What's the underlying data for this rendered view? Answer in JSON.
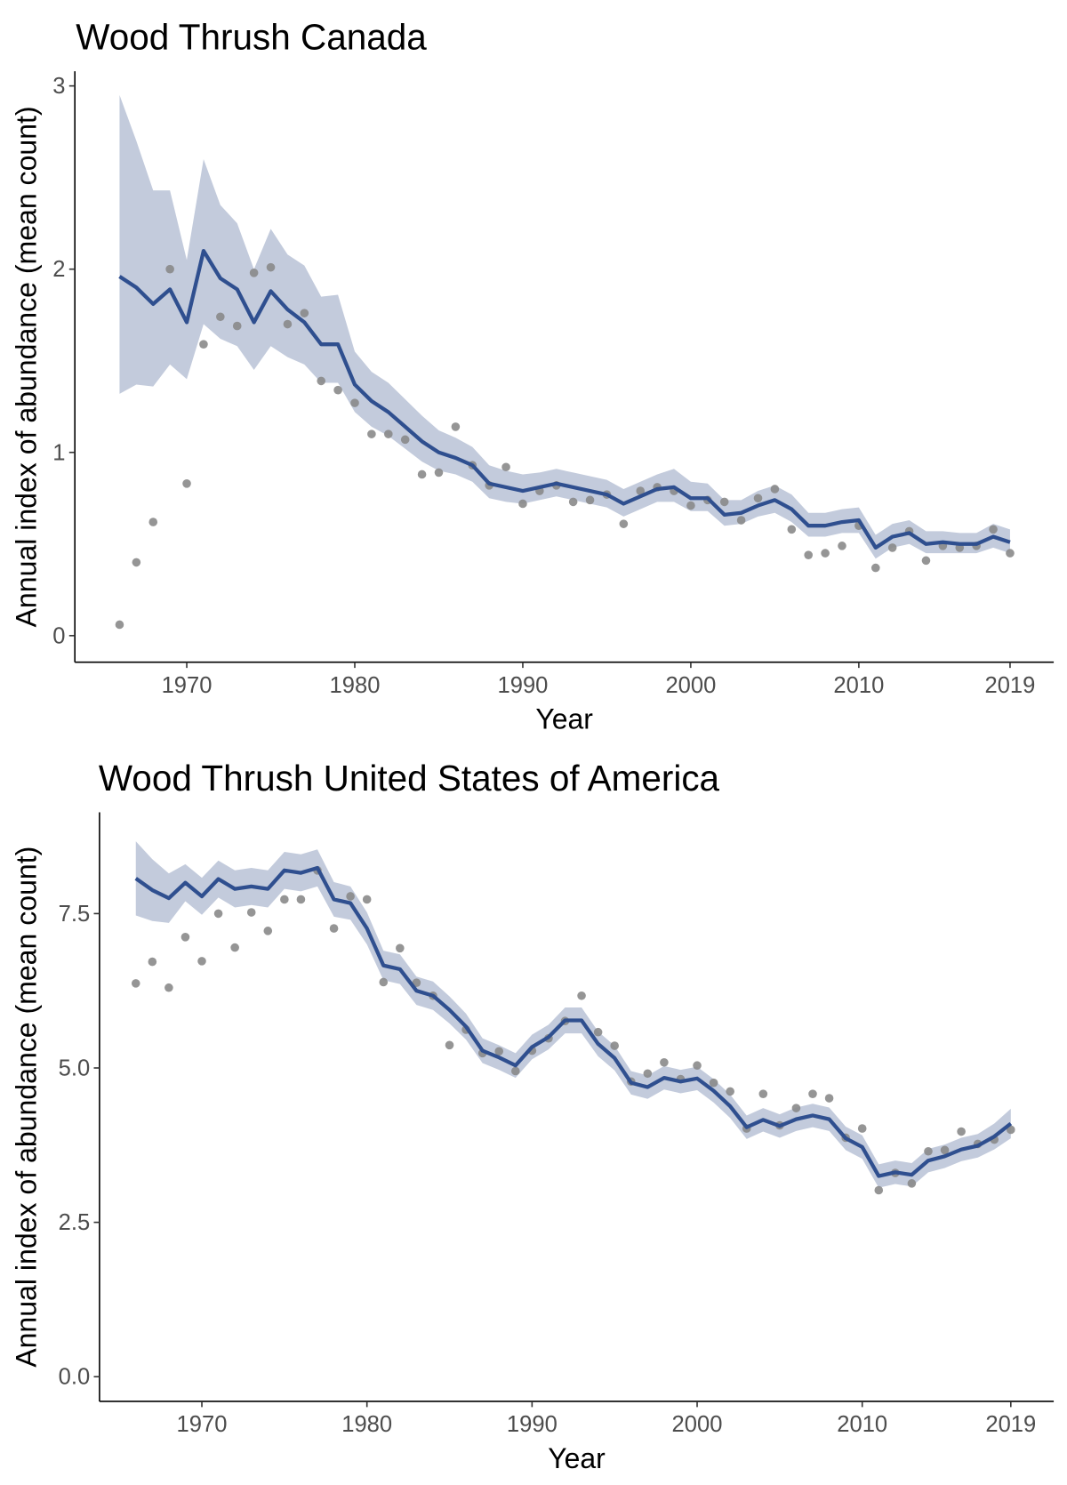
{
  "chart_data": [
    {
      "type": "line",
      "title": "Wood Thrush Canada",
      "xlabel": "Year",
      "ylabel": "Annual index of abundance (mean count)",
      "x": [
        1966,
        1967,
        1968,
        1969,
        1970,
        1971,
        1972,
        1973,
        1974,
        1975,
        1976,
        1977,
        1978,
        1979,
        1980,
        1981,
        1982,
        1983,
        1984,
        1985,
        1986,
        1987,
        1988,
        1989,
        1990,
        1991,
        1992,
        1993,
        1994,
        1995,
        1996,
        1997,
        1998,
        1999,
        2000,
        2001,
        2002,
        2003,
        2004,
        2005,
        2006,
        2007,
        2008,
        2009,
        2010,
        2011,
        2012,
        2013,
        2014,
        2015,
        2016,
        2017,
        2018,
        2019
      ],
      "values": [
        1.96,
        1.9,
        1.81,
        1.89,
        1.71,
        2.1,
        1.95,
        1.89,
        1.71,
        1.88,
        1.78,
        1.71,
        1.59,
        1.59,
        1.37,
        1.28,
        1.22,
        1.14,
        1.06,
        1.0,
        0.97,
        0.93,
        0.83,
        0.81,
        0.79,
        0.81,
        0.83,
        0.81,
        0.79,
        0.77,
        0.72,
        0.76,
        0.8,
        0.81,
        0.75,
        0.75,
        0.66,
        0.67,
        0.71,
        0.74,
        0.69,
        0.6,
        0.6,
        0.62,
        0.63,
        0.48,
        0.54,
        0.56,
        0.5,
        0.51,
        0.5,
        0.5,
        0.54,
        0.51
      ],
      "lower": [
        1.32,
        1.37,
        1.36,
        1.48,
        1.4,
        1.7,
        1.62,
        1.58,
        1.45,
        1.58,
        1.52,
        1.48,
        1.38,
        1.38,
        1.22,
        1.14,
        1.09,
        1.02,
        0.95,
        0.9,
        0.88,
        0.84,
        0.75,
        0.73,
        0.72,
        0.74,
        0.76,
        0.74,
        0.72,
        0.7,
        0.65,
        0.69,
        0.73,
        0.73,
        0.68,
        0.68,
        0.6,
        0.61,
        0.65,
        0.67,
        0.62,
        0.54,
        0.54,
        0.56,
        0.56,
        0.42,
        0.48,
        0.5,
        0.45,
        0.45,
        0.45,
        0.45,
        0.48,
        0.45
      ],
      "upper": [
        2.95,
        2.7,
        2.43,
        2.43,
        2.05,
        2.6,
        2.35,
        2.25,
        2.0,
        2.22,
        2.08,
        2.02,
        1.85,
        1.86,
        1.55,
        1.44,
        1.38,
        1.29,
        1.2,
        1.12,
        1.08,
        1.03,
        0.93,
        0.9,
        0.88,
        0.89,
        0.91,
        0.89,
        0.87,
        0.85,
        0.8,
        0.84,
        0.88,
        0.91,
        0.84,
        0.83,
        0.74,
        0.74,
        0.79,
        0.82,
        0.77,
        0.67,
        0.67,
        0.69,
        0.7,
        0.55,
        0.61,
        0.63,
        0.57,
        0.57,
        0.56,
        0.56,
        0.61,
        0.58
      ],
      "points": [
        0.06,
        0.4,
        0.62,
        2.0,
        0.83,
        1.59,
        1.74,
        1.69,
        1.98,
        2.01,
        1.7,
        1.76,
        1.39,
        1.34,
        1.27,
        1.1,
        1.1,
        1.07,
        0.88,
        0.89,
        1.14,
        0.93,
        0.82,
        0.92,
        0.72,
        0.79,
        0.82,
        0.73,
        0.74,
        0.77,
        0.61,
        0.79,
        0.81,
        0.79,
        0.71,
        0.74,
        0.73,
        0.63,
        0.75,
        0.8,
        0.58,
        0.44,
        0.45,
        0.49,
        0.6,
        0.37,
        0.48,
        0.57,
        0.41,
        0.49,
        0.48,
        0.49,
        0.58,
        0.45
      ],
      "line_color": "#2f4f8f",
      "band_color": "#c3cbdc",
      "point_color": "#8a8a8a",
      "xlim": [
        1963.34,
        2021.6
      ],
      "xticks": [
        1970,
        1980,
        1990,
        2000,
        2010,
        2019
      ],
      "ylim": [
        -0.145,
        3.08
      ],
      "yticks": [
        0,
        1,
        2,
        3
      ]
    },
    {
      "type": "line",
      "title": "Wood Thrush United States of America",
      "xlabel": "Year",
      "ylabel": "Annual index of abundance (mean count)",
      "x": [
        1966,
        1967,
        1968,
        1969,
        1970,
        1971,
        1972,
        1973,
        1974,
        1975,
        1976,
        1977,
        1978,
        1979,
        1980,
        1981,
        1982,
        1983,
        1984,
        1985,
        1986,
        1987,
        1988,
        1989,
        1990,
        1991,
        1992,
        1993,
        1994,
        1995,
        1996,
        1997,
        1998,
        1999,
        2000,
        2001,
        2002,
        2003,
        2004,
        2005,
        2006,
        2007,
        2008,
        2009,
        2010,
        2011,
        2012,
        2013,
        2014,
        2015,
        2016,
        2017,
        2018,
        2019
      ],
      "values": [
        8.07,
        7.88,
        7.75,
        8.0,
        7.78,
        8.06,
        7.9,
        7.94,
        7.9,
        8.2,
        8.16,
        8.24,
        7.73,
        7.67,
        7.26,
        6.66,
        6.6,
        6.25,
        6.17,
        5.94,
        5.67,
        5.28,
        5.17,
        5.04,
        5.34,
        5.5,
        5.77,
        5.77,
        5.39,
        5.16,
        4.76,
        4.69,
        4.84,
        4.78,
        4.83,
        4.63,
        4.38,
        4.04,
        4.16,
        4.06,
        4.17,
        4.23,
        4.17,
        3.86,
        3.72,
        3.25,
        3.31,
        3.27,
        3.5,
        3.57,
        3.68,
        3.74,
        3.89,
        4.1
      ],
      "lower": [
        7.47,
        7.38,
        7.35,
        7.7,
        7.48,
        7.76,
        7.6,
        7.64,
        7.6,
        7.9,
        7.86,
        7.94,
        7.45,
        7.4,
        7.0,
        6.42,
        6.36,
        6.02,
        5.94,
        5.72,
        5.46,
        5.08,
        4.97,
        4.84,
        5.14,
        5.3,
        5.56,
        5.56,
        5.19,
        4.96,
        4.57,
        4.5,
        4.65,
        4.59,
        4.64,
        4.44,
        4.19,
        3.85,
        3.97,
        3.87,
        3.98,
        4.04,
        3.98,
        3.67,
        3.53,
        3.06,
        3.12,
        3.08,
        3.31,
        3.38,
        3.49,
        3.55,
        3.68,
        3.86
      ],
      "upper": [
        8.67,
        8.38,
        8.15,
        8.3,
        8.08,
        8.36,
        8.2,
        8.24,
        8.2,
        8.5,
        8.46,
        8.54,
        8.01,
        7.94,
        7.52,
        6.9,
        6.84,
        6.48,
        6.4,
        6.16,
        5.88,
        5.48,
        5.37,
        5.24,
        5.54,
        5.7,
        5.98,
        5.98,
        5.59,
        5.36,
        4.95,
        4.88,
        5.03,
        4.97,
        5.02,
        4.82,
        4.57,
        4.23,
        4.35,
        4.25,
        4.36,
        4.42,
        4.36,
        4.05,
        3.91,
        3.44,
        3.5,
        3.46,
        3.69,
        3.76,
        3.87,
        3.93,
        4.1,
        4.34
      ],
      "points": [
        6.37,
        6.72,
        6.3,
        7.12,
        6.73,
        7.5,
        6.95,
        7.52,
        7.22,
        7.73,
        7.73,
        8.2,
        7.26,
        7.78,
        7.73,
        6.39,
        6.94,
        6.38,
        6.17,
        5.37,
        5.62,
        5.24,
        5.27,
        4.95,
        5.28,
        5.48,
        5.76,
        6.17,
        5.58,
        5.36,
        4.78,
        4.91,
        5.09,
        4.82,
        5.04,
        4.76,
        4.62,
        4.02,
        4.58,
        4.07,
        4.35,
        4.58,
        4.51,
        3.87,
        4.02,
        3.02,
        3.3,
        3.13,
        3.65,
        3.67,
        3.97,
        3.77,
        3.84,
        4.0
      ],
      "line_color": "#2f4f8f",
      "band_color": "#c3cbdc",
      "point_color": "#8a8a8a",
      "xlim": [
        1963.8,
        2021.6
      ],
      "xticks": [
        1970,
        1980,
        1990,
        2000,
        2010,
        2019
      ],
      "ylim": [
        -0.4,
        9.14
      ],
      "yticks": [
        {
          "value": 0,
          "label": "0.0"
        },
        2.5,
        {
          "value": 5,
          "label": "5.0"
        },
        7.5
      ]
    }
  ]
}
